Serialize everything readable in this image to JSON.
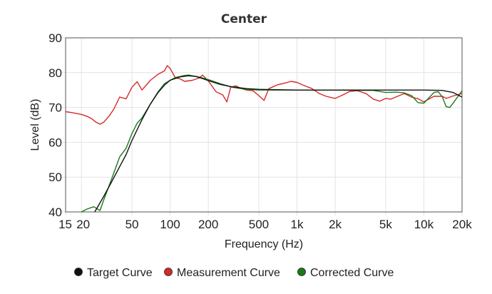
{
  "chart_data": {
    "type": "line",
    "title": "Center",
    "xlabel": "Frequency (Hz)",
    "ylabel": "Level (dB)",
    "x_scale": "log",
    "xlim": [
      15,
      20000
    ],
    "ylim": [
      40,
      90
    ],
    "grid": true,
    "legend_position": "bottom",
    "x_ticks": [
      {
        "value": 15,
        "label": "15"
      },
      {
        "value": 20,
        "label": "20"
      },
      {
        "value": 50,
        "label": "50"
      },
      {
        "value": 100,
        "label": "100"
      },
      {
        "value": 200,
        "label": "200"
      },
      {
        "value": 500,
        "label": "500"
      },
      {
        "value": 1000,
        "label": "1k"
      },
      {
        "value": 2000,
        "label": "2k"
      },
      {
        "value": 5000,
        "label": "5k"
      },
      {
        "value": 10000,
        "label": "10k"
      },
      {
        "value": 20000,
        "label": "20k"
      }
    ],
    "y_ticks": [
      {
        "value": 40,
        "label": "40"
      },
      {
        "value": 50,
        "label": "50"
      },
      {
        "value": 60,
        "label": "60"
      },
      {
        "value": 70,
        "label": "70"
      },
      {
        "value": 80,
        "label": "80"
      },
      {
        "value": 90,
        "label": "90"
      }
    ],
    "series": [
      {
        "name": "Target Curve",
        "color": "#111111",
        "x": [
          25,
          30,
          35,
          40,
          45,
          50,
          60,
          70,
          80,
          90,
          100,
          120,
          140,
          160,
          180,
          200,
          250,
          300,
          400,
          500,
          700,
          1000,
          2000,
          3000,
          5000,
          7000,
          10000,
          14000,
          17000,
          20000
        ],
        "y": [
          39.5,
          44.5,
          49.0,
          53.0,
          56.5,
          60.5,
          66.5,
          71.0,
          74.2,
          76.4,
          77.8,
          78.8,
          79.1,
          78.9,
          78.3,
          77.7,
          76.6,
          76.0,
          75.4,
          75.2,
          75.1,
          75.0,
          75.0,
          75.0,
          75.0,
          75.0,
          75.0,
          74.9,
          74.3,
          73.0
        ]
      },
      {
        "name": "Measurement Curve",
        "color": "#d42a2a",
        "x": [
          15,
          17,
          20,
          22,
          24,
          26,
          28,
          30,
          33,
          36,
          40,
          45,
          50,
          55,
          60,
          70,
          80,
          90,
          95,
          100,
          110,
          120,
          130,
          150,
          170,
          180,
          200,
          230,
          260,
          280,
          300,
          330,
          360,
          400,
          450,
          500,
          550,
          600,
          700,
          800,
          900,
          1000,
          1100,
          1300,
          1500,
          1700,
          2000,
          2300,
          2600,
          3000,
          3500,
          4000,
          4500,
          5000,
          5500,
          6000,
          7000,
          8000,
          9000,
          10000,
          12000,
          14000,
          15000,
          17000,
          20000
        ],
        "y": [
          68.8,
          68.5,
          68.0,
          67.5,
          66.8,
          65.8,
          65.2,
          65.8,
          67.5,
          69.5,
          73.0,
          72.5,
          75.8,
          77.4,
          75.0,
          77.8,
          79.5,
          80.5,
          82.0,
          81.2,
          78.5,
          78.2,
          77.5,
          77.8,
          78.5,
          79.3,
          77.6,
          74.5,
          73.6,
          71.6,
          75.8,
          76.2,
          75.5,
          75.0,
          74.8,
          73.4,
          72.0,
          75.4,
          76.5,
          77.0,
          77.5,
          77.2,
          76.5,
          75.5,
          74.0,
          73.2,
          72.6,
          73.6,
          74.6,
          74.8,
          74.0,
          72.4,
          71.8,
          72.6,
          72.4,
          73.0,
          74.0,
          73.0,
          72.5,
          71.6,
          73.2,
          73.2,
          72.6,
          73.3,
          74.0
        ]
      },
      {
        "name": "Corrected Curve",
        "color": "#1a7a1a",
        "x": [
          20,
          22,
          25,
          28,
          30,
          35,
          40,
          45,
          50,
          55,
          60,
          70,
          80,
          90,
          100,
          110,
          120,
          130,
          140,
          150,
          170,
          200,
          250,
          280,
          300,
          350,
          400,
          500,
          700,
          1000,
          1500,
          2000,
          3000,
          4000,
          5000,
          6000,
          7000,
          8000,
          9000,
          10000,
          12000,
          13000,
          14000,
          15000,
          16000,
          17000,
          18000,
          20000
        ],
        "y": [
          40.0,
          40.8,
          41.5,
          40.4,
          43.5,
          50.0,
          55.8,
          58.3,
          62.5,
          65.5,
          67.0,
          71.0,
          74.4,
          76.8,
          77.8,
          78.6,
          78.9,
          79.2,
          79.3,
          79.1,
          78.7,
          78.0,
          76.8,
          76.3,
          75.9,
          75.5,
          75.2,
          75.0,
          75.0,
          75.0,
          75.0,
          75.0,
          74.9,
          74.9,
          74.3,
          74.4,
          74.2,
          73.4,
          71.4,
          71.2,
          74.3,
          74.5,
          73.0,
          70.2,
          70.0,
          71.2,
          72.5,
          74.8
        ]
      }
    ]
  }
}
